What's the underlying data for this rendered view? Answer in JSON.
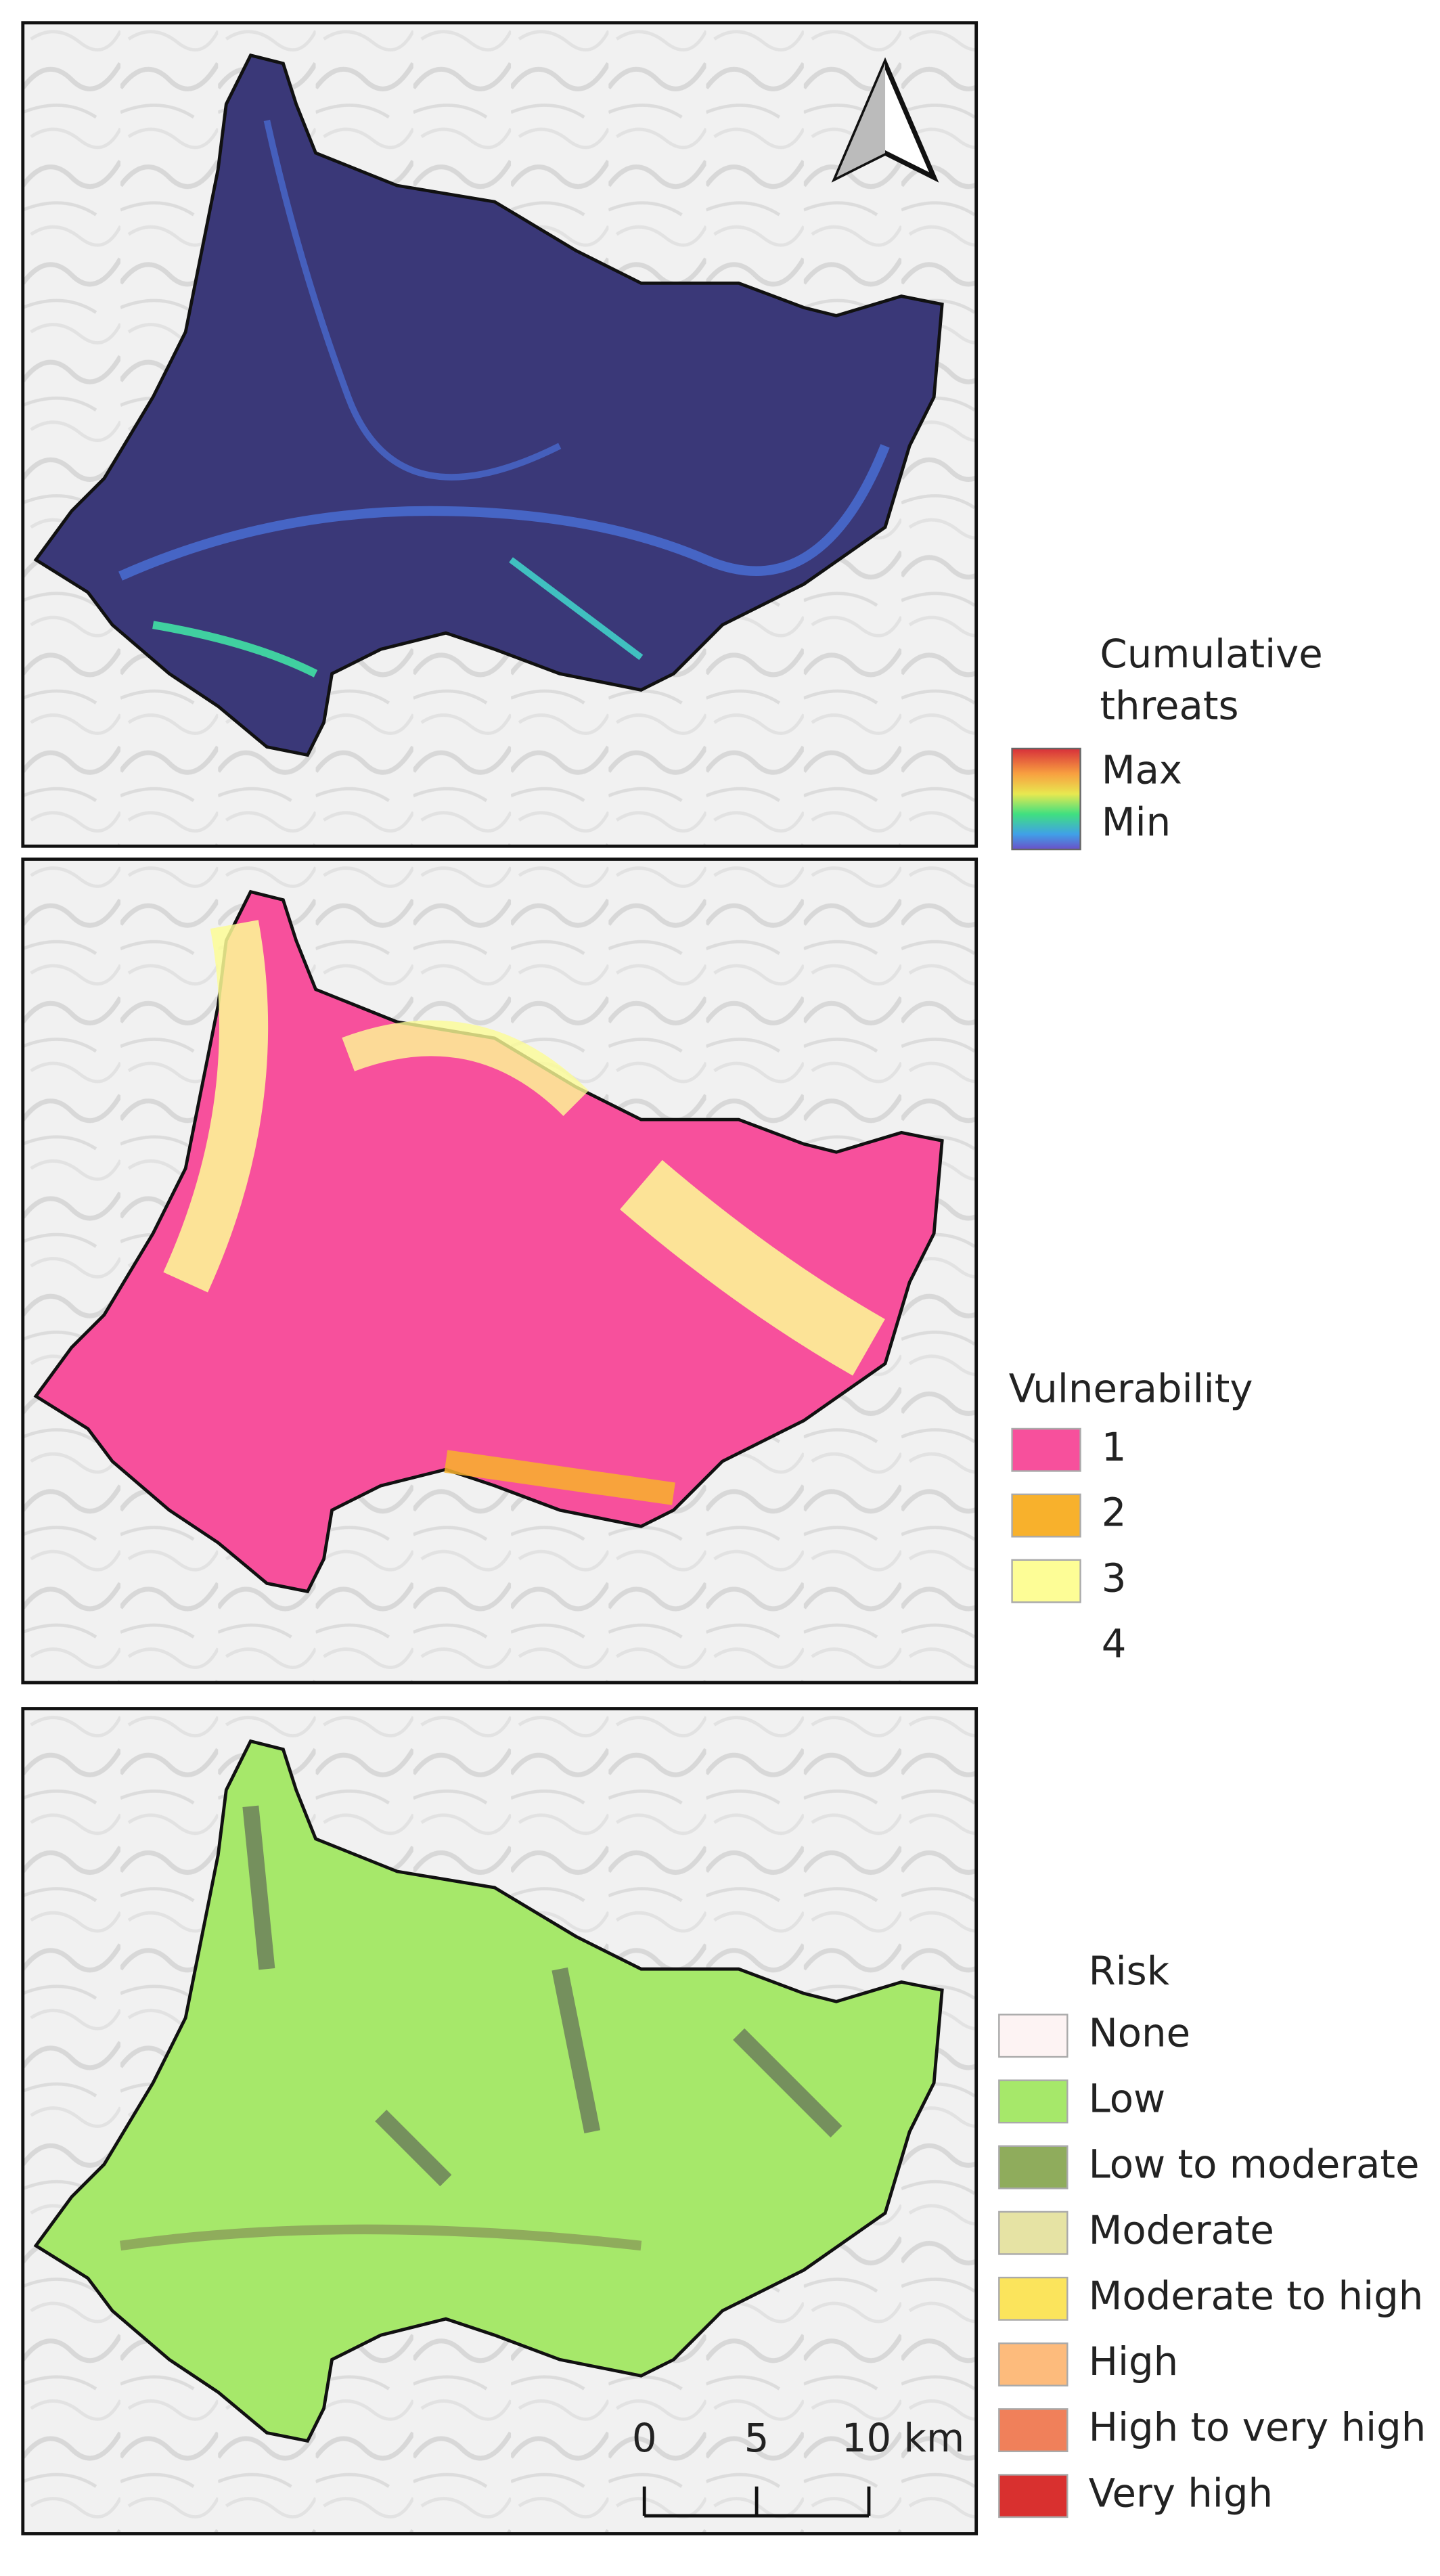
{
  "panels": [
    {
      "legend": {
        "title": "Cumulative threats",
        "max_label": "Max",
        "min_label": "Min"
      }
    },
    {
      "legend": {
        "title": "Vulnerability",
        "items": [
          {
            "label": "1",
            "color": "#f7509c"
          },
          {
            "label": "2",
            "color": "#f8b12c"
          },
          {
            "label": "3",
            "color": "#fdfd96"
          },
          {
            "label": "4",
            "color": "#ffffff"
          }
        ]
      }
    },
    {
      "legend": {
        "title": "Risk",
        "items": [
          {
            "label": "None",
            "color": "#fdf3f3"
          },
          {
            "label": "Low",
            "color": "#a6e86a"
          },
          {
            "label": "Low to moderate",
            "color": "#8fac5c"
          },
          {
            "label": "Moderate",
            "color": "#e6e3a4"
          },
          {
            "label": "Moderate to high",
            "color": "#fbe45c"
          },
          {
            "label": "High",
            "color": "#fdbb7c"
          },
          {
            "label": "High to very high",
            "color": "#f0805a"
          },
          {
            "label": "Very high",
            "color": "#d9302f"
          }
        ]
      },
      "scale_bar": {
        "labels": [
          "0",
          "5",
          "10 km"
        ]
      }
    }
  ]
}
